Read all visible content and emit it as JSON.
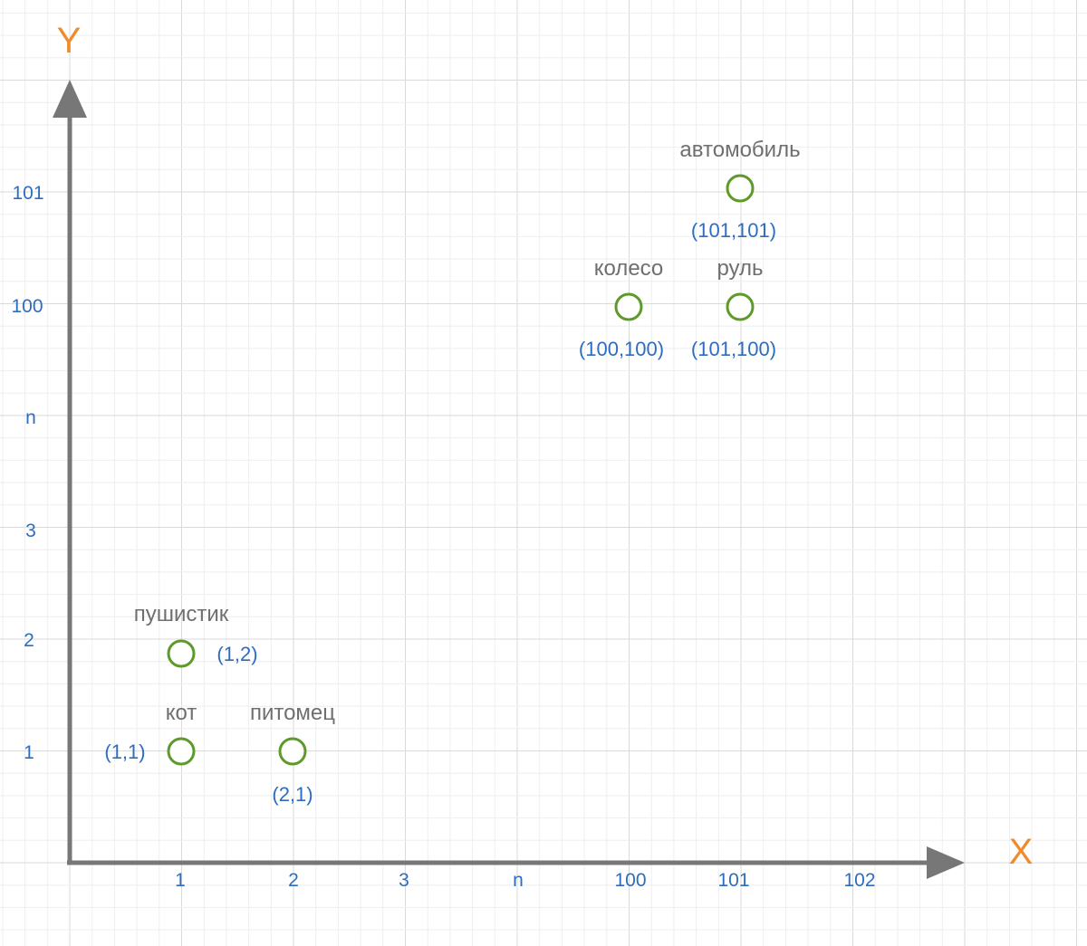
{
  "axes": {
    "x_title": "X",
    "y_title": "Y",
    "x_ticks": [
      "1",
      "2",
      "3",
      "n",
      "100",
      "101",
      "102"
    ],
    "y_ticks": [
      "1",
      "2",
      "3",
      "n",
      "100",
      "101"
    ]
  },
  "points": [
    {
      "word": "кот",
      "coord": "(1,1)",
      "x": "1",
      "y": "1"
    },
    {
      "word": "пушистик",
      "coord": "(1,2)",
      "x": "1",
      "y": "2"
    },
    {
      "word": "питомец",
      "coord": "(2,1)",
      "x": "2",
      "y": "1"
    },
    {
      "word": "колесо",
      "coord": "(100,100)",
      "x": "100",
      "y": "100"
    },
    {
      "word": "руль",
      "coord": "(101,100)",
      "x": "101",
      "y": "100"
    },
    {
      "word": "автомобиль",
      "coord": "(101,101)",
      "x": "101",
      "y": "101"
    }
  ],
  "colors": {
    "grid_minor": "#eeeeee",
    "grid_major": "#dadada",
    "axis": "#777777",
    "axis_title": "#f08a2a",
    "tick_label": "#2d6dbf",
    "point_stroke": "#5e9a2a",
    "word_label": "#6f6f6f"
  }
}
